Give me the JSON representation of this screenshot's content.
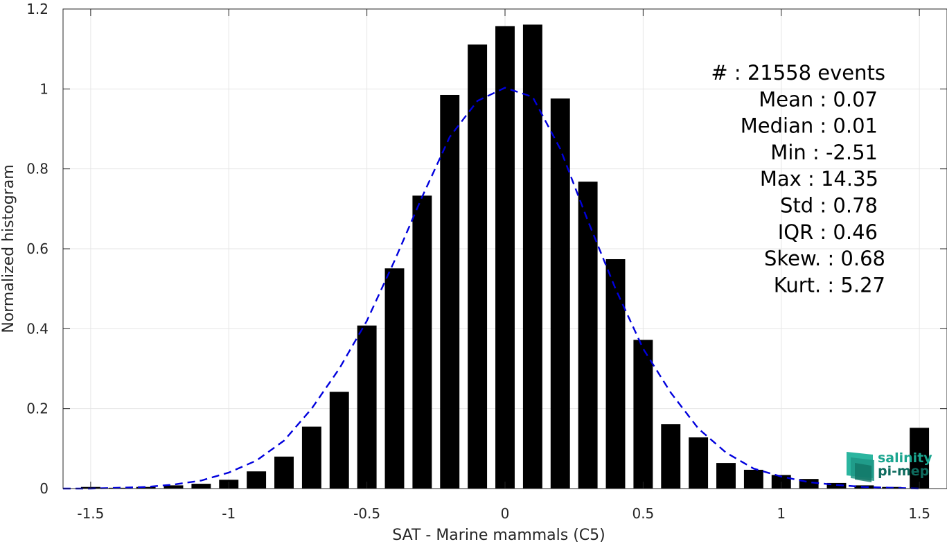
{
  "chart_data": {
    "type": "bar",
    "xlabel": "SAT - Marine mammals (C5)",
    "ylabel": "Normalized histogram",
    "xlim": [
      -1.6,
      1.6
    ],
    "ylim": [
      0,
      1.2
    ],
    "grid": true,
    "x_ticks": [
      -1.5,
      -1,
      -0.5,
      0,
      0.5,
      1,
      1.5
    ],
    "x_tick_labels": [
      "-1.5",
      "-1",
      "-0.5",
      "0",
      "0.5",
      "1",
      "1.5"
    ],
    "y_ticks": [
      0,
      0.2,
      0.4,
      0.6,
      0.8,
      1,
      1.2
    ],
    "y_tick_labels": [
      "0",
      "0.2",
      "0.4",
      "0.6",
      "0.8",
      "1",
      "1.2"
    ],
    "bar_width": 0.07,
    "bars": {
      "x": [
        -1.5,
        -1.4,
        -1.3,
        -1.2,
        -1.1,
        -1.0,
        -0.9,
        -0.8,
        -0.7,
        -0.6,
        -0.5,
        -0.4,
        -0.3,
        -0.2,
        -0.1,
        0.0,
        0.1,
        0.2,
        0.3,
        0.4,
        0.5,
        0.6,
        0.7,
        0.8,
        0.9,
        1.0,
        1.1,
        1.2,
        1.3,
        1.4,
        1.5
      ],
      "values": [
        0.004,
        0.002,
        0.004,
        0.008,
        0.012,
        0.022,
        0.043,
        0.08,
        0.155,
        0.242,
        0.408,
        0.551,
        0.733,
        0.985,
        1.111,
        1.157,
        1.161,
        0.976,
        0.768,
        0.574,
        0.372,
        0.161,
        0.128,
        0.064,
        0.047,
        0.034,
        0.024,
        0.014,
        0.008,
        0.004,
        0.152
      ],
      "color": "#000000"
    },
    "fit_curve": {
      "style": "dashed",
      "color": "#0000dd",
      "x": [
        -1.6,
        -1.5,
        -1.4,
        -1.3,
        -1.2,
        -1.1,
        -1.0,
        -0.9,
        -0.8,
        -0.7,
        -0.6,
        -0.5,
        -0.4,
        -0.3,
        -0.2,
        -0.1,
        0.0,
        0.1,
        0.2,
        0.3,
        0.4,
        0.5,
        0.6,
        0.7,
        0.8,
        0.9,
        1.0,
        1.1,
        1.2,
        1.3,
        1.4,
        1.5
      ],
      "y": [
        0.0,
        0.0,
        0.002,
        0.004,
        0.01,
        0.02,
        0.04,
        0.07,
        0.12,
        0.2,
        0.3,
        0.42,
        0.57,
        0.73,
        0.88,
        0.97,
        1.003,
        0.98,
        0.85,
        0.67,
        0.5,
        0.35,
        0.24,
        0.15,
        0.09,
        0.05,
        0.03,
        0.016,
        0.009,
        0.004,
        0.002,
        0.0
      ]
    },
    "stats": [
      "#  : 21558 events",
      "Mean : 0.07",
      "Median : 0.01",
      "Min : -2.51",
      "Max : 14.35",
      "Std : 0.78",
      "IQR : 0.46",
      "Skew. : 0.68",
      "Kurt. : 5.27"
    ]
  },
  "logo": {
    "line1": "salinity",
    "line2": "pi-mep",
    "color1": "#1aa58f",
    "color2": "#0e6b5e"
  }
}
